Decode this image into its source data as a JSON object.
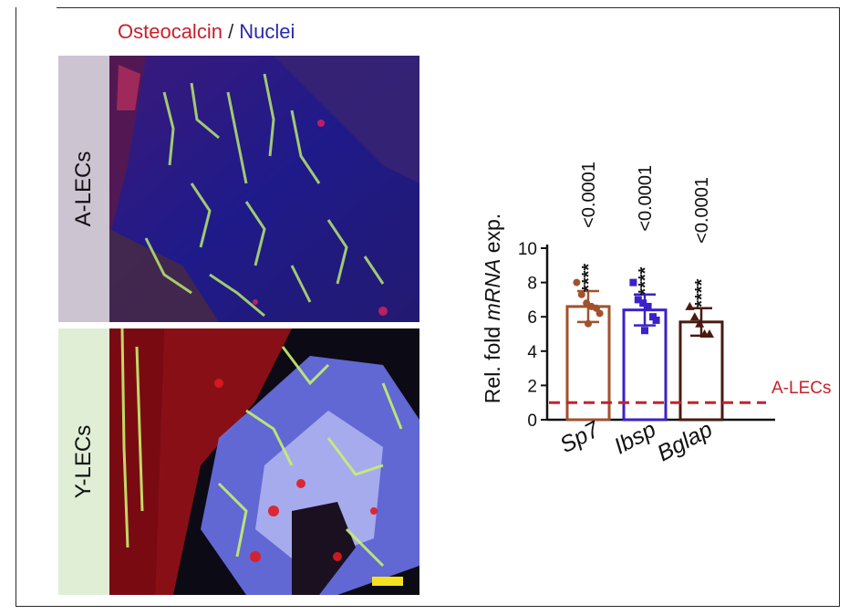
{
  "figure_title": {
    "part1": "Osteocalcin",
    "separator": " / ",
    "part2": "Nuclei",
    "color1": "#c8202a",
    "color2": "#2a2ab0"
  },
  "panels": [
    {
      "label": "A-LECs",
      "scale_bar": false
    },
    {
      "label": "Y-LECs",
      "scale_bar": true
    }
  ],
  "chart_data": {
    "type": "bar",
    "categories": [
      "Sp7",
      "Ibsp",
      "Bglap"
    ],
    "values": [
      6.6,
      6.4,
      5.7
    ],
    "error": [
      0.9,
      0.9,
      0.8
    ],
    "colors": [
      "#a0522d",
      "#3a22c8",
      "#4a1a10"
    ],
    "points": [
      [
        8.0,
        7.3,
        6.8,
        6.6,
        6.5,
        6.2,
        5.6
      ],
      [
        8.0,
        7.0,
        6.8,
        6.6,
        6.0,
        5.8,
        5.2
      ],
      [
        6.6,
        6.0,
        5.6,
        5.0,
        5.0
      ]
    ],
    "markers": [
      "circle",
      "square",
      "triangle"
    ],
    "stars": [
      "****",
      "****",
      "****"
    ],
    "p_values": [
      "<0.0001",
      "<0.0001",
      "<0.0001"
    ],
    "ylabel_parts": [
      "Rel. fold ",
      "mRNA",
      " exp."
    ],
    "yticks": [
      0,
      2,
      4,
      6,
      8,
      10
    ],
    "ylim": [
      0,
      10
    ],
    "reference": {
      "value": 1,
      "label": "A-LECs",
      "color": "#c8202a"
    }
  }
}
